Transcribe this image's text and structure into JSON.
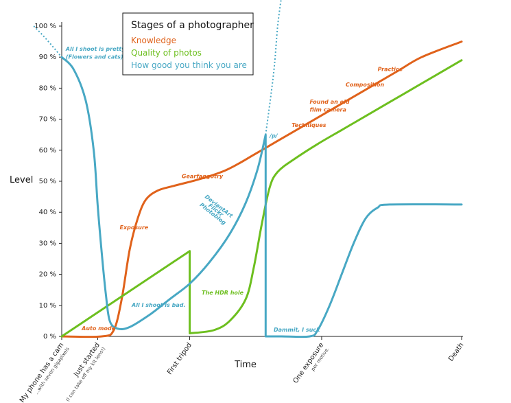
{
  "chart_data": {
    "type": "line",
    "title": "Stages of a photographer",
    "xlabel": "Time",
    "ylabel": "Level",
    "ylim": [
      0,
      100
    ],
    "y_ticks": [
      "0 %",
      "10 %",
      "20 %",
      "30 %",
      "40 %",
      "50 %",
      "60 %",
      "70 %",
      "80 %",
      "90 %",
      "100 %"
    ],
    "x_ticks": [
      {
        "label": "My phone has a cam",
        "sub": "...with seven gigapixels",
        "x": 0
      },
      {
        "label": "Just started",
        "sub": "(I can take off my kit lens!)",
        "x": 9
      },
      {
        "label": "First tripod",
        "sub": "",
        "x": 32
      },
      {
        "label": "One exposure",
        "sub": "per motive.",
        "x": 65
      },
      {
        "label": "Death",
        "sub": "",
        "x": 100
      }
    ],
    "legend": "top-center",
    "series": [
      {
        "name": "Knowledge",
        "color": "#e0621b",
        "points": [
          [
            0,
            0
          ],
          [
            10,
            0
          ],
          [
            13,
            2
          ],
          [
            15,
            12
          ],
          [
            17,
            28
          ],
          [
            19,
            38
          ],
          [
            21,
            44
          ],
          [
            24,
            47
          ],
          [
            28,
            48.5
          ],
          [
            34,
            50.5
          ],
          [
            40,
            53
          ],
          [
            44,
            55.5
          ],
          [
            48,
            58.5
          ],
          [
            54,
            63
          ],
          [
            60,
            67.5
          ],
          [
            66,
            72
          ],
          [
            72,
            76.5
          ],
          [
            78,
            81
          ],
          [
            84,
            85.5
          ],
          [
            90,
            90
          ],
          [
            100,
            95
          ]
        ]
      },
      {
        "name": "Quality of photos",
        "color": "#6dbf1f",
        "points": [
          [
            0,
            0
          ],
          [
            32,
            27.5
          ],
          [
            32,
            1
          ],
          [
            38,
            2
          ],
          [
            42,
            5
          ],
          [
            46,
            12
          ],
          [
            48,
            22
          ],
          [
            50,
            36
          ],
          [
            52,
            48
          ],
          [
            54,
            53
          ],
          [
            58,
            57
          ],
          [
            64,
            62
          ],
          [
            70,
            66.5
          ],
          [
            76,
            71
          ],
          [
            82,
            75.5
          ],
          [
            88,
            80
          ],
          [
            94,
            84.5
          ],
          [
            100,
            89
          ]
        ]
      },
      {
        "name": "How good you think you are",
        "color": "#48a8c4",
        "points": [
          [
            0,
            90
          ],
          [
            3,
            86
          ],
          [
            6,
            76
          ],
          [
            8,
            60
          ],
          [
            9,
            42
          ],
          [
            10,
            27
          ],
          [
            11,
            14
          ],
          [
            12,
            5
          ],
          [
            14,
            2.5
          ],
          [
            17,
            3
          ],
          [
            22,
            7
          ],
          [
            27,
            12
          ],
          [
            32,
            17
          ],
          [
            37,
            24
          ],
          [
            42,
            33
          ],
          [
            46,
            43
          ],
          [
            49,
            54
          ],
          [
            51,
            65
          ],
          [
            51,
            0
          ],
          [
            55,
            0
          ],
          [
            62,
            0
          ],
          [
            64,
            2
          ],
          [
            67,
            10
          ],
          [
            70,
            20
          ],
          [
            73,
            30
          ],
          [
            76,
            38
          ],
          [
            79,
            41.5
          ],
          [
            82,
            42.5
          ],
          [
            100,
            42.5
          ]
        ]
      }
    ],
    "dotted_extensions": [
      {
        "series": "How good you think you are",
        "points": [
          [
            -7,
            100
          ],
          [
            -4,
            96
          ],
          [
            0,
            90
          ]
        ]
      },
      {
        "series": "How good you think you are",
        "points": [
          [
            51,
            65
          ],
          [
            53,
            85
          ],
          [
            54,
            100
          ],
          [
            55,
            110
          ]
        ]
      }
    ],
    "annotations": [
      {
        "text": "All I shoot is pretty.",
        "color": "#48a8c4",
        "x": 1,
        "y": 92
      },
      {
        "text": "(Flowers and cats)",
        "color": "#48a8c4",
        "x": 1,
        "y": 89.5
      },
      {
        "text": "Auto mode",
        "color": "#e0621b",
        "x": 5,
        "y": 2
      },
      {
        "text": "Exposure",
        "color": "#e0621b",
        "x": 14.5,
        "y": 34.5
      },
      {
        "text": "Gearfaggotry",
        "color": "#e0621b",
        "x": 30,
        "y": 51
      },
      {
        "text": "All I shoot is bad.",
        "color": "#48a8c4",
        "x": 17.5,
        "y": 9.5
      },
      {
        "text": "The HDR hole",
        "color": "#6dbf1f",
        "x": 35,
        "y": 13.5
      },
      {
        "text": "/p/",
        "color": "#48a8c4",
        "x": 52,
        "y": 64
      },
      {
        "text": "Dammit, I suck",
        "color": "#48a8c4",
        "x": 53,
        "y": 1.5
      },
      {
        "text": "Techniques",
        "color": "#e0621b",
        "x": 57.5,
        "y": 67.5
      },
      {
        "text": "Found an old",
        "color": "#e0621b",
        "x": 62,
        "y": 75
      },
      {
        "text": "film camera",
        "color": "#e0621b",
        "x": 62,
        "y": 72.5
      },
      {
        "text": "Composition",
        "color": "#e0621b",
        "x": 71,
        "y": 80.5
      },
      {
        "text": "Practice",
        "color": "#e0621b",
        "x": 79,
        "y": 85.5
      }
    ],
    "rotated_annotation": {
      "lines": [
        "DeviantArt",
        "Flickr",
        "Photoblog"
      ],
      "color": "#48a8c4",
      "x": 39,
      "y": 41.5
    }
  }
}
